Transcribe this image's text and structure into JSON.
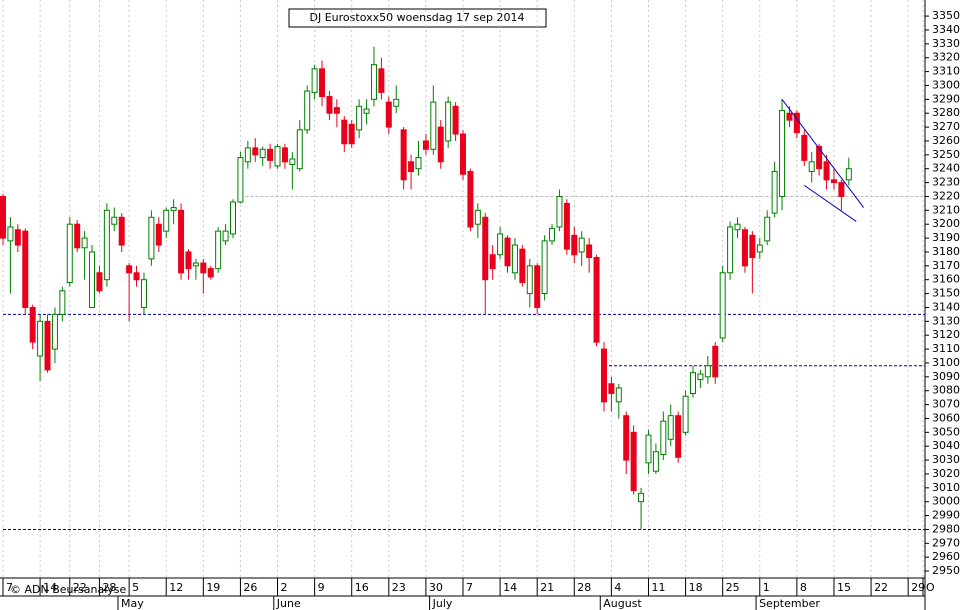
{
  "chart_data": {
    "type": "candlestick",
    "title": "DJ Eurostoxx50 woensdag 17 sep 2014",
    "annotation": "© ADN Beursanalyse",
    "up_color": "#008000",
    "down_color": "#e8001c",
    "ylim": [
      2945,
      3358
    ],
    "yticks": [
      2950,
      2960,
      2970,
      2980,
      2990,
      3000,
      3010,
      3020,
      3030,
      3040,
      3050,
      3060,
      3070,
      3080,
      3090,
      3100,
      3110,
      3120,
      3130,
      3140,
      3150,
      3160,
      3170,
      3180,
      3190,
      3200,
      3210,
      3220,
      3230,
      3240,
      3250,
      3260,
      3270,
      3280,
      3290,
      3300,
      3310,
      3320,
      3330,
      3340,
      3350
    ],
    "categories": [
      "7",
      null,
      null,
      null,
      null,
      "14",
      null,
      null,
      null,
      "22",
      null,
      null,
      null,
      "28",
      null,
      null,
      null,
      "5",
      null,
      null,
      null,
      null,
      "12",
      null,
      null,
      null,
      null,
      "19",
      null,
      null,
      null,
      null,
      "26",
      null,
      null,
      null,
      null,
      "2",
      null,
      null,
      null,
      null,
      "9",
      null,
      null,
      null,
      null,
      "16",
      null,
      null,
      null,
      null,
      "23",
      null,
      null,
      null,
      null,
      "30",
      null,
      null,
      null,
      null,
      "7",
      null,
      null,
      null,
      null,
      "14",
      null,
      null,
      null,
      null,
      "21",
      null,
      null,
      null,
      null,
      "28",
      null,
      null,
      null,
      null,
      "4",
      null,
      null,
      null,
      null,
      "11",
      null,
      null,
      null,
      null,
      "18",
      null,
      null,
      null,
      null,
      "25",
      null,
      null,
      null,
      null,
      "1",
      null,
      null,
      null,
      null,
      "8",
      null,
      null,
      null,
      null,
      "15",
      null,
      null,
      null,
      null,
      "22",
      null,
      null,
      null,
      null,
      "29",
      null,
      "O"
    ],
    "months": [
      {
        "label": "May",
        "index": 16
      },
      {
        "label": "June",
        "index": 37
      },
      {
        "label": "July",
        "index": 58
      },
      {
        "label": "August",
        "index": 81
      },
      {
        "label": "September",
        "index": 102
      }
    ],
    "ohlc": [
      [
        3220,
        3222,
        3185,
        3190
      ],
      [
        3188,
        3205,
        3150,
        3198
      ],
      [
        3196,
        3200,
        3180,
        3185
      ],
      [
        3195,
        3197,
        3135,
        3140
      ],
      [
        3140,
        3142,
        3110,
        3115
      ],
      [
        3105,
        3135,
        3087,
        3130
      ],
      [
        3130,
        3135,
        3093,
        3095
      ],
      [
        3110,
        3140,
        3100,
        3135
      ],
      [
        3135,
        3155,
        3130,
        3152
      ],
      [
        3158,
        3205,
        3155,
        3200
      ],
      [
        3200,
        3203,
        3180,
        3183
      ],
      [
        3183,
        3195,
        3160,
        3190
      ],
      [
        3140,
        3185,
        3140,
        3180
      ],
      [
        3165,
        3170,
        3150,
        3152
      ],
      [
        3160,
        3215,
        3155,
        3210
      ],
      [
        3200,
        3212,
        3195,
        3205
      ],
      [
        3205,
        3208,
        3180,
        3185
      ],
      [
        3170,
        3172,
        3130,
        3165
      ],
      [
        3165,
        3170,
        3155,
        3160
      ],
      [
        3140,
        3165,
        3135,
        3160
      ],
      [
        3175,
        3210,
        3170,
        3205
      ],
      [
        3200,
        3205,
        3180,
        3185
      ],
      [
        3195,
        3212,
        3190,
        3210
      ],
      [
        3210,
        3218,
        3200,
        3212
      ],
      [
        3210,
        3215,
        3160,
        3165
      ],
      [
        3180,
        3182,
        3160,
        3168
      ],
      [
        3170,
        3175,
        3160,
        3172
      ],
      [
        3172,
        3175,
        3150,
        3165
      ],
      [
        3168,
        3170,
        3160,
        3162
      ],
      [
        3168,
        3198,
        3165,
        3195
      ],
      [
        3188,
        3200,
        3185,
        3195
      ],
      [
        3193,
        3218,
        3190,
        3216
      ],
      [
        3216,
        3252,
        3215,
        3248
      ],
      [
        3245,
        3260,
        3240,
        3255
      ],
      [
        3255,
        3262,
        3245,
        3250
      ],
      [
        3248,
        3256,
        3242,
        3254
      ],
      [
        3254,
        3258,
        3240,
        3246
      ],
      [
        3242,
        3258,
        3240,
        3256
      ],
      [
        3255,
        3258,
        3240,
        3245
      ],
      [
        3243,
        3252,
        3225,
        3247
      ],
      [
        3240,
        3275,
        3238,
        3268
      ],
      [
        3268,
        3300,
        3265,
        3296
      ],
      [
        3295,
        3315,
        3290,
        3312
      ],
      [
        3312,
        3318,
        3285,
        3292
      ],
      [
        3292,
        3296,
        3275,
        3280
      ],
      [
        3284,
        3290,
        3270,
        3280
      ],
      [
        3275,
        3278,
        3252,
        3258
      ],
      [
        3272,
        3275,
        3255,
        3258
      ],
      [
        3268,
        3290,
        3262,
        3285
      ],
      [
        3280,
        3290,
        3272,
        3283
      ],
      [
        3290,
        3328,
        3285,
        3315
      ],
      [
        3312,
        3320,
        3290,
        3295
      ],
      [
        3288,
        3292,
        3265,
        3270
      ],
      [
        3285,
        3300,
        3280,
        3290
      ],
      [
        3268,
        3270,
        3225,
        3232
      ],
      [
        3245,
        3250,
        3225,
        3238
      ],
      [
        3240,
        3260,
        3235,
        3248
      ],
      [
        3260,
        3265,
        3250,
        3254
      ],
      [
        3254,
        3300,
        3250,
        3288
      ],
      [
        3270,
        3275,
        3240,
        3245
      ],
      [
        3260,
        3292,
        3255,
        3288
      ],
      [
        3285,
        3288,
        3260,
        3265
      ],
      [
        3265,
        3268,
        3232,
        3236
      ],
      [
        3238,
        3240,
        3195,
        3198
      ],
      [
        3200,
        3215,
        3190,
        3210
      ],
      [
        3205,
        3208,
        3135,
        3160
      ],
      [
        3178,
        3185,
        3160,
        3168
      ],
      [
        3178,
        3198,
        3175,
        3193
      ],
      [
        3190,
        3192,
        3165,
        3170
      ],
      [
        3165,
        3190,
        3160,
        3185
      ],
      [
        3182,
        3185,
        3155,
        3158
      ],
      [
        3150,
        3175,
        3140,
        3170
      ],
      [
        3170,
        3172,
        3135,
        3140
      ],
      [
        3150,
        3192,
        3145,
        3188
      ],
      [
        3188,
        3200,
        3185,
        3197
      ],
      [
        3198,
        3225,
        3195,
        3220
      ],
      [
        3215,
        3218,
        3178,
        3182
      ],
      [
        3192,
        3198,
        3172,
        3178
      ],
      [
        3180,
        3195,
        3170,
        3190
      ],
      [
        3185,
        3190,
        3165,
        3176
      ],
      [
        3176,
        3178,
        3112,
        3115
      ],
      [
        3110,
        3115,
        3065,
        3072
      ],
      [
        3085,
        3090,
        3065,
        3078
      ],
      [
        3072,
        3085,
        3060,
        3082
      ],
      [
        3062,
        3065,
        3020,
        3030
      ],
      [
        3050,
        3055,
        3005,
        3008
      ],
      [
        3000,
        3010,
        2980,
        3006
      ],
      [
        3028,
        3052,
        3020,
        3048
      ],
      [
        3022,
        3042,
        3020,
        3036
      ],
      [
        3034,
        3065,
        3030,
        3058
      ],
      [
        3045,
        3070,
        3040,
        3062
      ],
      [
        3062,
        3065,
        3028,
        3032
      ],
      [
        3050,
        3080,
        3048,
        3076
      ],
      [
        3078,
        3098,
        3075,
        3093
      ],
      [
        3088,
        3095,
        3082,
        3092
      ],
      [
        3090,
        3105,
        3085,
        3098
      ],
      [
        3112,
        3115,
        3085,
        3090
      ],
      [
        3118,
        3170,
        3115,
        3165
      ],
      [
        3165,
        3202,
        3160,
        3198
      ],
      [
        3196,
        3205,
        3190,
        3200
      ],
      [
        3196,
        3198,
        3165,
        3170
      ],
      [
        3192,
        3195,
        3150,
        3176
      ],
      [
        3180,
        3190,
        3175,
        3185
      ],
      [
        3188,
        3210,
        3185,
        3205
      ],
      [
        3208,
        3245,
        3205,
        3238
      ],
      [
        3220,
        3290,
        3210,
        3282
      ],
      [
        3280,
        3285,
        3270,
        3275
      ],
      [
        3280,
        3282,
        3262,
        3266
      ],
      [
        3264,
        3268,
        3242,
        3246
      ],
      [
        3238,
        3252,
        3230,
        3245
      ],
      [
        3256,
        3258,
        3235,
        3240
      ],
      [
        3245,
        3250,
        3225,
        3232
      ],
      [
        3232,
        3240,
        3225,
        3230
      ],
      [
        3230,
        3232,
        3210,
        3220
      ],
      [
        3232,
        3248,
        3228,
        3240
      ],
      null,
      null,
      null,
      null,
      null,
      null,
      null,
      null,
      null,
      null
    ],
    "hlines": [
      {
        "value": 3135,
        "from": 0,
        "color": "#0000a0"
      },
      {
        "value": 3098,
        "from": 81,
        "color": "#0000a0"
      },
      {
        "value": 2980,
        "from": 0,
        "color": "#0000a0"
      },
      {
        "value": 3220,
        "from": 32,
        "color": "#bbbbbb"
      }
    ],
    "trendlines": [
      {
        "x": [
          105,
          116
        ],
        "y": [
          3290,
          3212
        ],
        "color": "#0000c0"
      },
      {
        "x": [
          108,
          115
        ],
        "y": [
          3228,
          3202
        ],
        "color": "#0000c0"
      }
    ]
  }
}
